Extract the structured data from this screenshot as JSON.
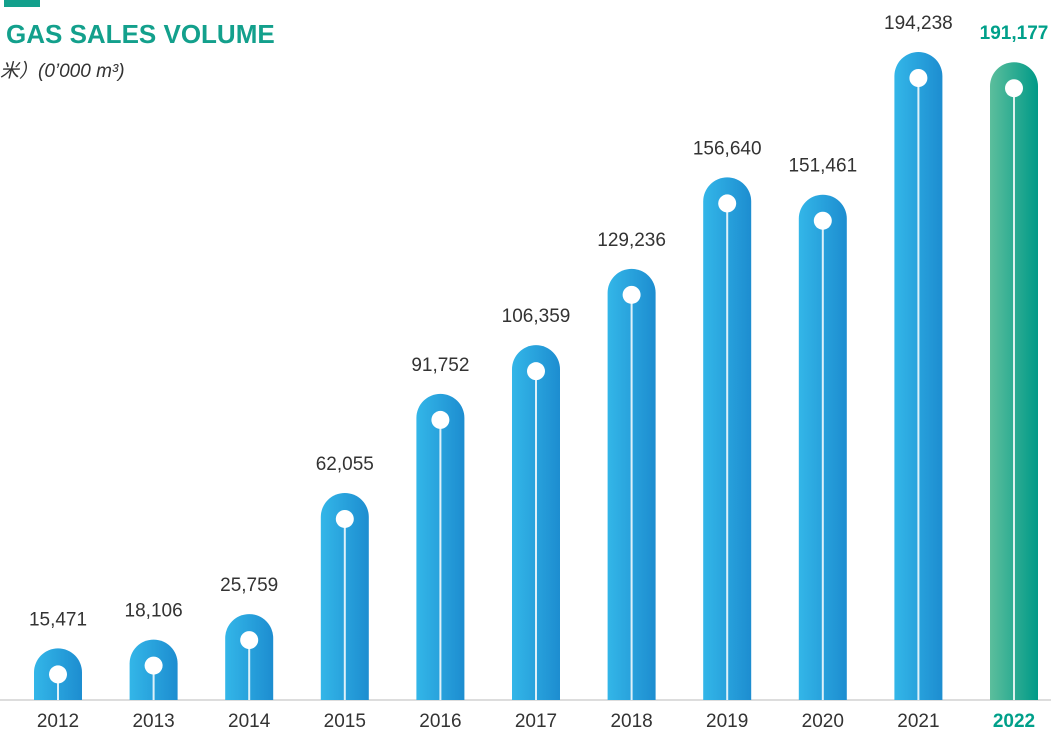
{
  "chart_data": {
    "type": "bar",
    "title": "GAS SALES VOLUME",
    "subtitle": "米）(0’000 m³)",
    "categories": [
      "2012",
      "2013",
      "2014",
      "2015",
      "2016",
      "2017",
      "2018",
      "2019",
      "2020",
      "2021",
      "2022"
    ],
    "values": [
      15471,
      18106,
      25759,
      62055,
      91752,
      106359,
      129236,
      156640,
      151461,
      194238,
      191177
    ],
    "value_labels": [
      "15,471",
      "18,106",
      "25,759",
      "62,055",
      "91,752",
      "106,359",
      "129,236",
      "156,640",
      "151,461",
      "194,238",
      "191,177"
    ],
    "colors": [
      "#27a9e1",
      "#27a9e1",
      "#27a9e1",
      "#27a9e1",
      "#27a9e1",
      "#27a9e1",
      "#27a9e1",
      "#27a9e1",
      "#27a9e1",
      "#27a9e1",
      "#00a08a"
    ]
  }
}
